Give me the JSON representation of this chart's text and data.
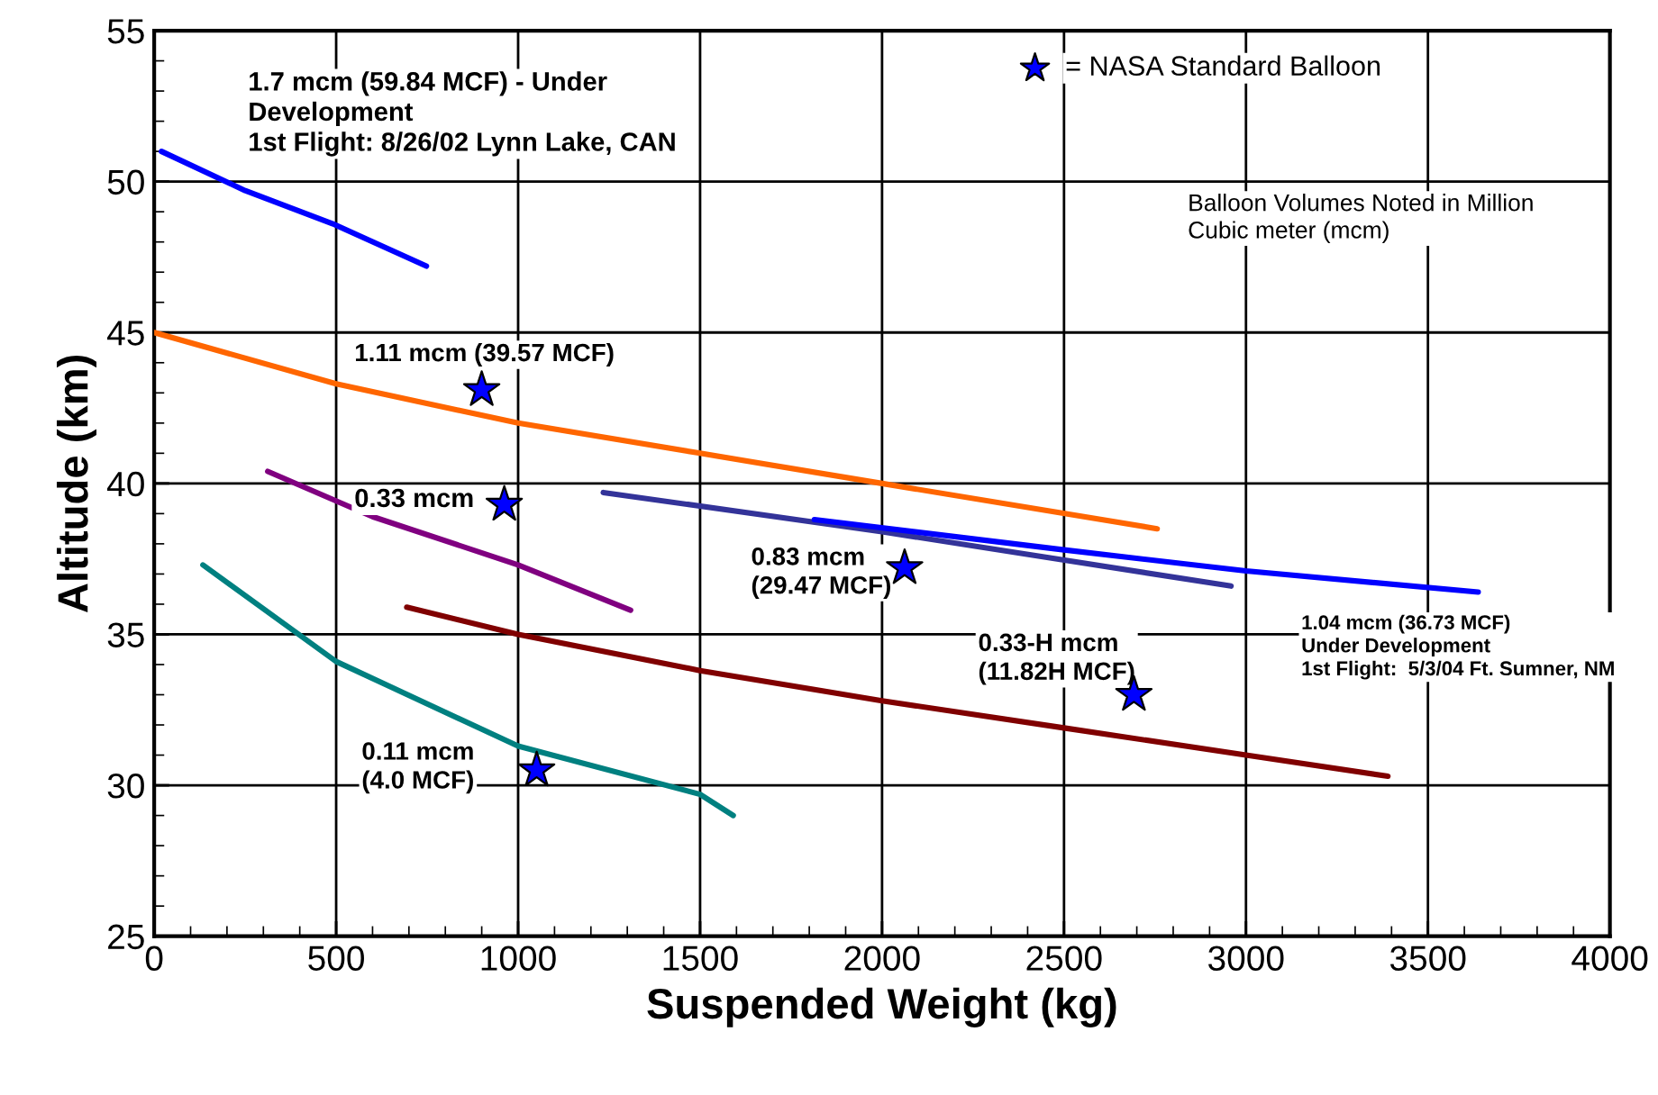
{
  "chart_data": {
    "type": "line",
    "xlabel": "Suspended Weight (kg)",
    "ylabel": "Altitude (km)",
    "xlim": [
      0,
      4000
    ],
    "xticks": [
      0,
      500,
      1000,
      1500,
      2000,
      2500,
      3000,
      3500,
      4000
    ],
    "ylim": [
      25,
      55
    ],
    "yticks": [
      25,
      30,
      35,
      40,
      45,
      50,
      55
    ],
    "grid": true,
    "legend": "top right",
    "line_style": "solid",
    "marker": "none",
    "series": [
      {
        "color": "#0000ff",
        "x": [
          20,
          250,
          491,
          748
        ],
        "values": [
          51.0,
          49.7,
          48.6,
          47.2
        ]
      },
      {
        "color": "#ff6600",
        "x": [
          0,
          500,
          1000,
          1500,
          2000,
          2756
        ],
        "values": [
          45.0,
          43.3,
          42.0,
          41.0,
          40.0,
          38.5
        ]
      },
      {
        "color": "#800080",
        "x": [
          312,
          600,
          1000,
          1309
        ],
        "values": [
          40.4,
          38.9,
          37.3,
          35.8
        ]
      },
      {
        "color": "#333399",
        "x": [
          1234,
          2000,
          2959
        ],
        "values": [
          39.7,
          38.4,
          36.6
        ]
      },
      {
        "color": "#0000ff",
        "x": [
          1814,
          2500,
          3000,
          3638
        ],
        "values": [
          38.8,
          37.8,
          37.1,
          36.4
        ]
      },
      {
        "color": "#800000",
        "x": [
          694,
          1000,
          1500,
          2000,
          2500,
          3000,
          3390
        ],
        "values": [
          35.9,
          35.0,
          33.8,
          32.8,
          31.9,
          31.0,
          30.3
        ]
      },
      {
        "color": "#008080",
        "x": [
          134,
          500,
          1000,
          1500,
          1591
        ],
        "values": [
          37.3,
          34.1,
          31.3,
          29.7,
          29.0
        ]
      },
      {
        "type": "scatter",
        "name": "= NASA Standard Balloon",
        "color": "#0000ff",
        "marker": "star",
        "x": [
          900,
          962,
          2062,
          2692,
          1051
        ],
        "values": [
          43.1,
          39.3,
          37.2,
          33.0,
          30.5
        ]
      }
    ],
    "annotations": [
      "1.7 mcm (59.84 MCF) - Under\nDevelopment\n1st Flight: 8/26/02 Lynn Lake, CAN",
      "1.11 mcm (39.57 MCF)",
      "0.33 mcm",
      "0.83 mcm\n(29.47 MCF)",
      "0.33-H mcm\n(11.82H MCF)",
      "0.11 mcm\n(4.0 MCF)",
      "1.04 mcm (36.73 MCF)\nUnder Development\n1st Flight:  5/3/04 Ft. Sumner, NM",
      "Balloon Volumes Noted in Million\nCubic meter (mcm)"
    ]
  }
}
